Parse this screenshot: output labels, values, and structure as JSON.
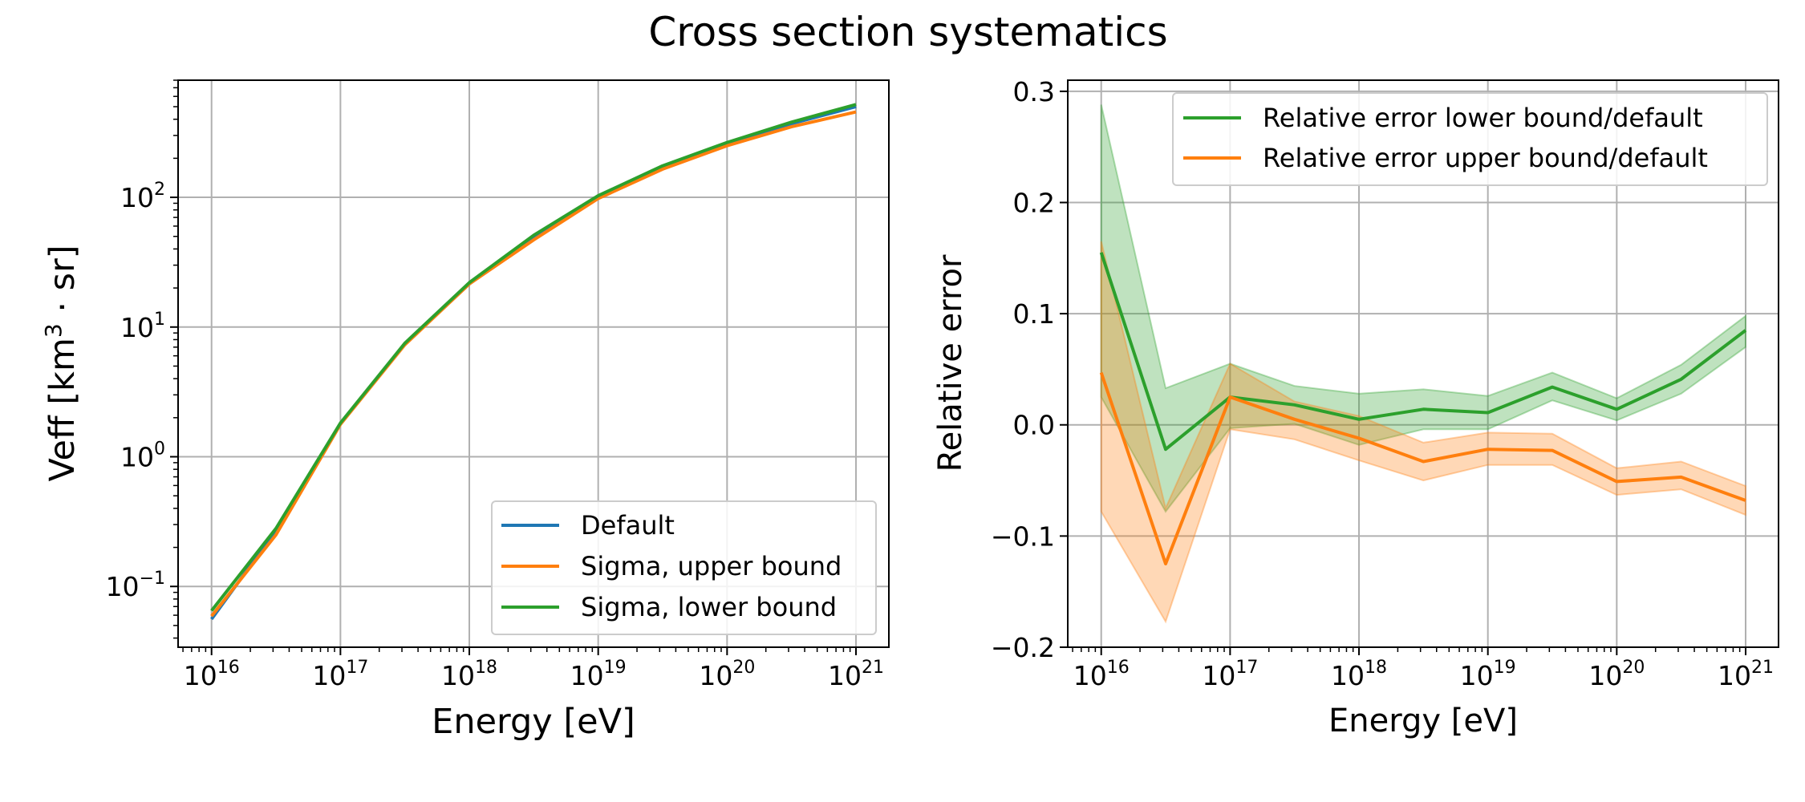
{
  "title": "Cross section systematics",
  "chart_data": [
    {
      "type": "line",
      "xscale": "log",
      "yscale": "log",
      "xlim": [
        5500000000000000.0,
        1.8e+21
      ],
      "ylim": [
        0.034,
        800
      ],
      "xlabel": "Energy [eV]",
      "ylabel": "Veff [km³ · sr]",
      "ylabel_base": "Veff [km",
      "ylabel_exp": "3",
      "ylabel_tail": " · sr]",
      "grid": true,
      "legend_position": "lower-right",
      "xticks": [
        {
          "base": "10",
          "exp": "16",
          "value": 1e+16
        },
        {
          "base": "10",
          "exp": "17",
          "value": 1e+17
        },
        {
          "base": "10",
          "exp": "18",
          "value": 1e+18
        },
        {
          "base": "10",
          "exp": "19",
          "value": 1e+19
        },
        {
          "base": "10",
          "exp": "20",
          "value": 1e+20
        },
        {
          "base": "10",
          "exp": "21",
          "value": 1e+21
        }
      ],
      "yticks": [
        {
          "base": "10",
          "exp": "−1",
          "value": 0.1
        },
        {
          "base": "10",
          "exp": "0",
          "value": 1
        },
        {
          "base": "10",
          "exp": "1",
          "value": 10
        },
        {
          "base": "10",
          "exp": "2",
          "value": 100
        }
      ],
      "x": [
        1e+16,
        3.16e+16,
        1e+17,
        3.16e+17,
        1e+18,
        3.16e+18,
        1e+19,
        3.16e+19,
        1e+20,
        3.16e+20,
        1e+21
      ],
      "series": [
        {
          "name": "Default",
          "color": "#1f77b4",
          "values": [
            0.056,
            0.27,
            1.8,
            7.4,
            21.5,
            49,
            100,
            170,
            260,
            370,
            500
          ]
        },
        {
          "name": "Sigma, upper bound",
          "color": "#ff7f0e",
          "values": [
            0.059,
            0.25,
            1.78,
            7.3,
            21.5,
            47,
            98,
            165,
            250,
            350,
            455
          ]
        },
        {
          "name": "Sigma, lower bound",
          "color": "#2ca02c",
          "values": [
            0.065,
            0.28,
            1.82,
            7.5,
            22,
            51,
            103,
            175,
            265,
            380,
            520
          ]
        }
      ]
    },
    {
      "type": "line",
      "xscale": "log",
      "yscale": "linear",
      "xlim": [
        5500000000000000.0,
        1.8e+21
      ],
      "ylim": [
        -0.2,
        0.31
      ],
      "xlabel": "Energy [eV]",
      "ylabel": "Relative error",
      "grid": true,
      "legend_position": "top-right",
      "xticks": [
        {
          "base": "10",
          "exp": "16",
          "value": 1e+16
        },
        {
          "base": "10",
          "exp": "17",
          "value": 1e+17
        },
        {
          "base": "10",
          "exp": "18",
          "value": 1e+18
        },
        {
          "base": "10",
          "exp": "19",
          "value": 1e+19
        },
        {
          "base": "10",
          "exp": "20",
          "value": 1e+20
        },
        {
          "base": "10",
          "exp": "21",
          "value": 1e+21
        }
      ],
      "yticks": [
        {
          "label": "0.3",
          "value": 0.3
        },
        {
          "label": "0.2",
          "value": 0.2
        },
        {
          "label": "0.1",
          "value": 0.1
        },
        {
          "label": "0.0",
          "value": 0.0
        },
        {
          "label": "−0.1",
          "value": -0.1
        },
        {
          "label": "−0.2",
          "value": -0.2
        }
      ],
      "x": [
        1e+16,
        3.16e+16,
        1e+17,
        3.16e+17,
        1e+18,
        3.16e+18,
        1e+19,
        3.16e+19,
        1e+20,
        3.16e+20,
        1e+21
      ],
      "series": [
        {
          "name": "Relative error lower bound/default",
          "color": "#2ca02c",
          "values": [
            0.155,
            -0.022,
            0.025,
            0.018,
            0.005,
            0.014,
            0.011,
            0.034,
            0.014,
            0.041,
            0.085
          ],
          "band_upper": [
            0.288,
            0.033,
            0.055,
            0.035,
            0.028,
            0.032,
            0.026,
            0.047,
            0.024,
            0.054,
            0.098
          ],
          "band_lower": [
            0.025,
            -0.078,
            -0.003,
            0.001,
            -0.018,
            -0.004,
            -0.004,
            0.022,
            0.004,
            0.028,
            0.07
          ]
        },
        {
          "name": "Relative error upper bound/default",
          "color": "#ff7f0e",
          "values": [
            0.047,
            -0.125,
            0.025,
            0.005,
            -0.012,
            -0.033,
            -0.022,
            -0.023,
            -0.051,
            -0.047,
            -0.068
          ],
          "band_upper": [
            0.165,
            -0.075,
            0.055,
            0.021,
            0.008,
            -0.016,
            -0.007,
            -0.008,
            -0.039,
            -0.033,
            -0.055
          ],
          "band_lower": [
            -0.078,
            -0.177,
            -0.004,
            -0.013,
            -0.032,
            -0.05,
            -0.036,
            -0.036,
            -0.063,
            -0.058,
            -0.081
          ]
        }
      ]
    }
  ]
}
